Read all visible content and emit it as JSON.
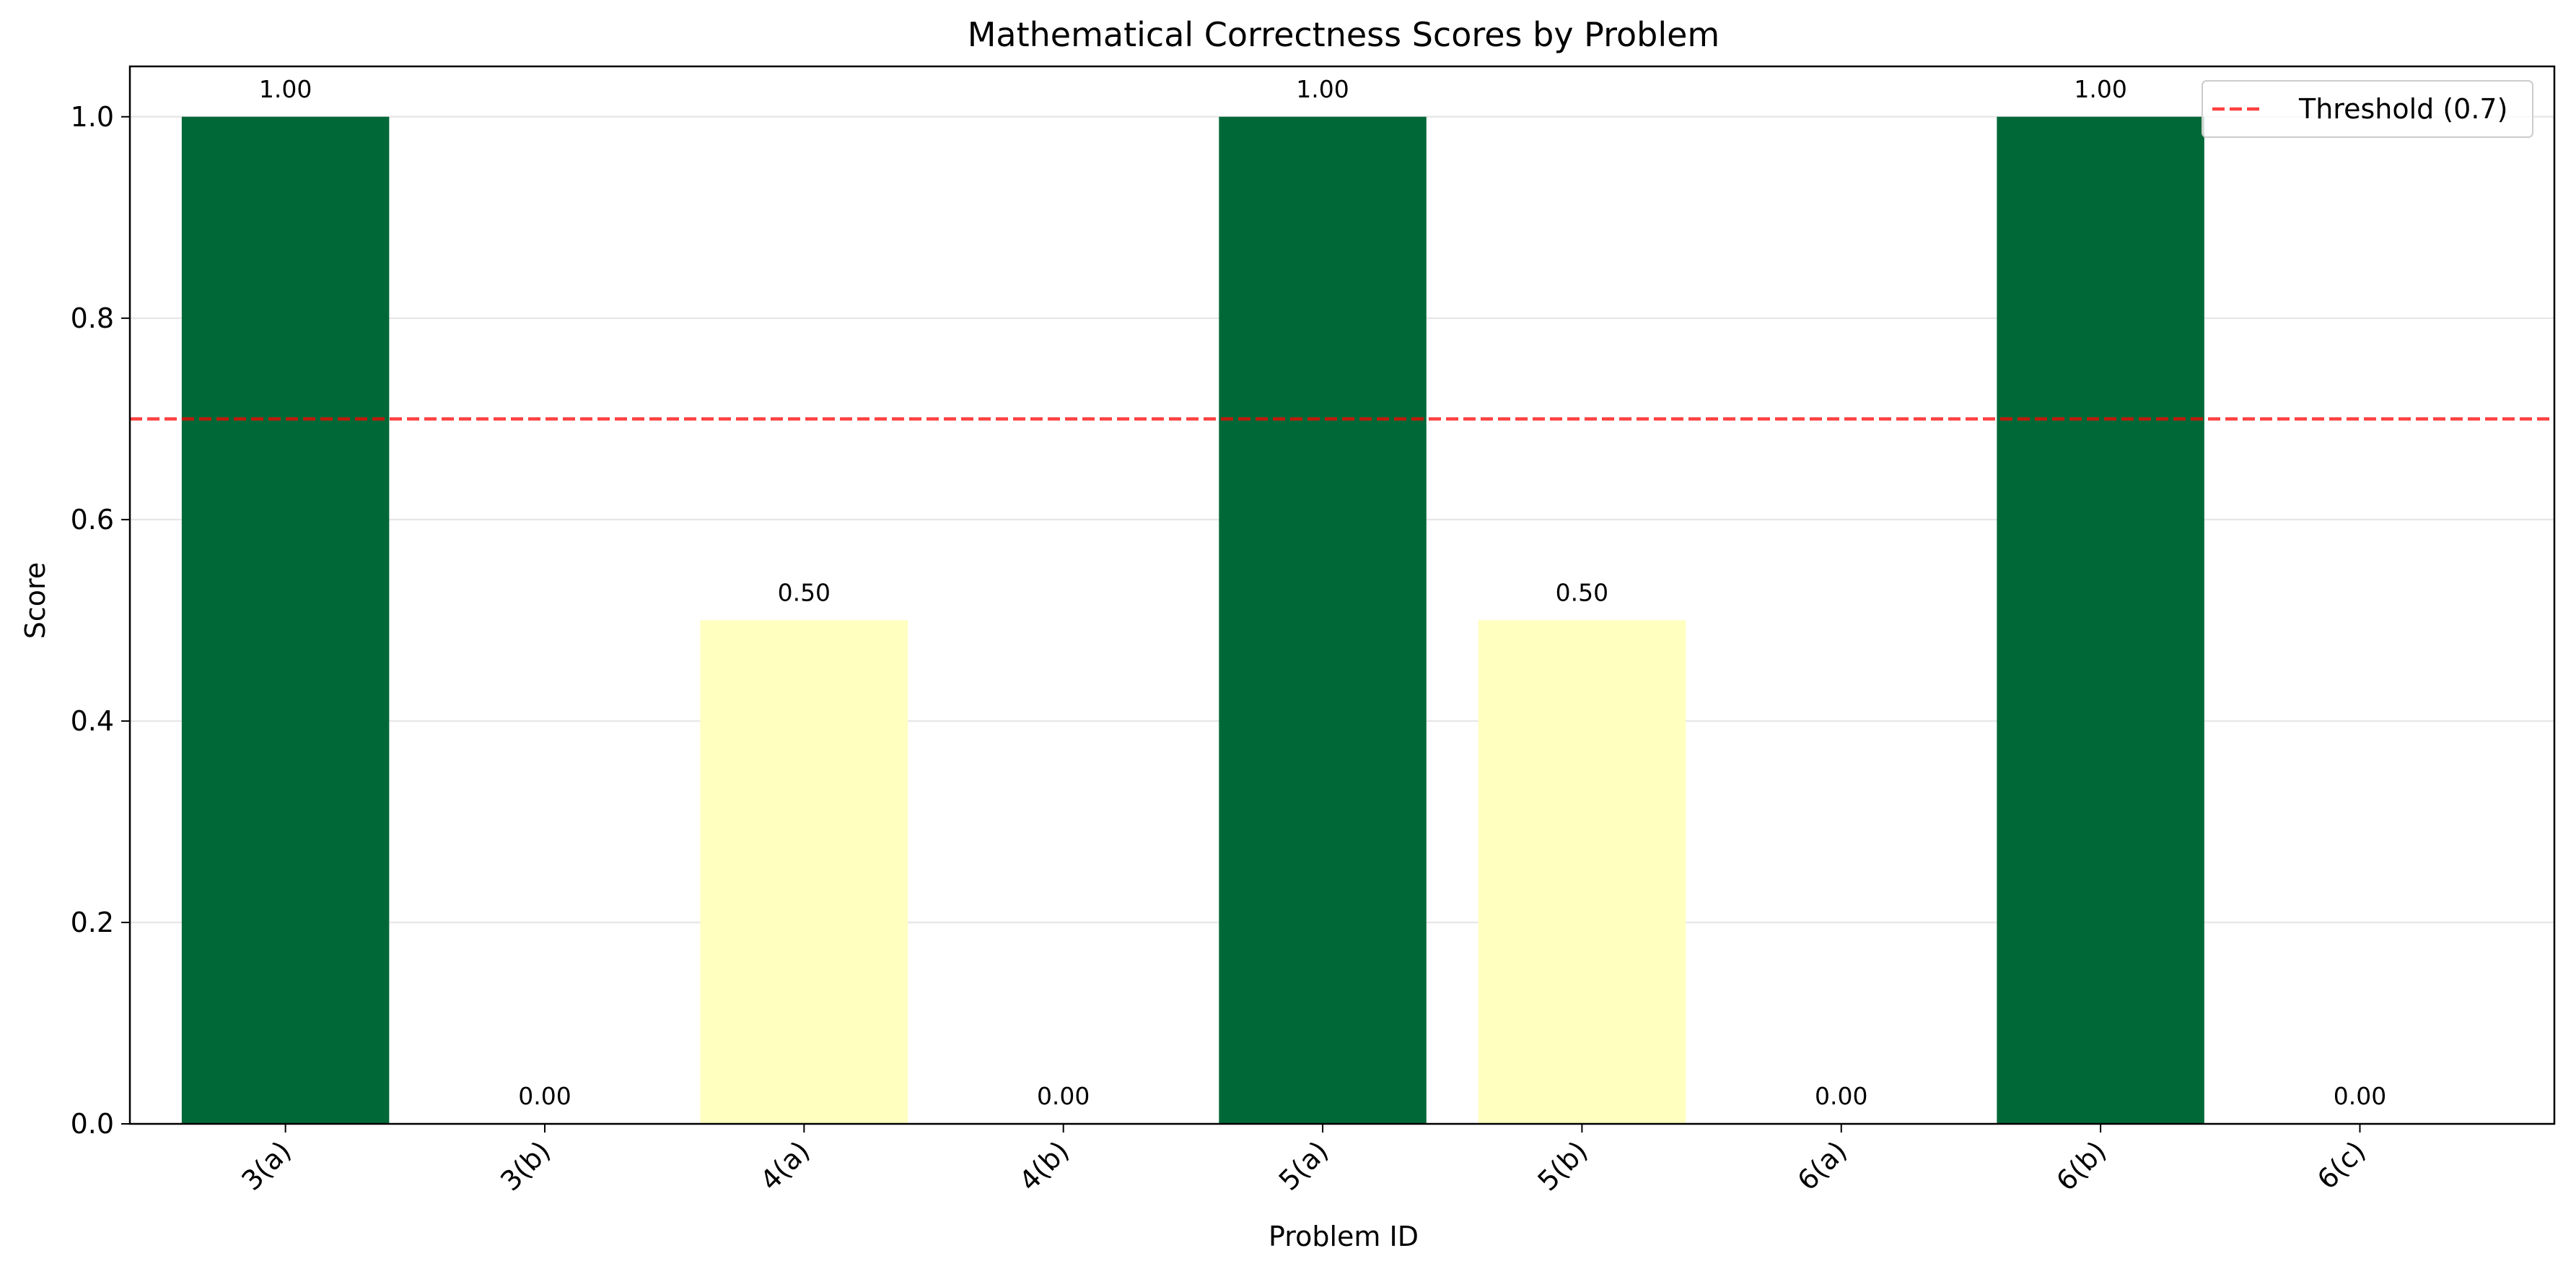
{
  "chart_data": {
    "type": "bar",
    "title": "Mathematical Correctness Scores by Problem",
    "xlabel": "Problem ID",
    "ylabel": "Score",
    "categories": [
      "3(a)",
      "3(b)",
      "4(a)",
      "4(b)",
      "5(a)",
      "5(b)",
      "6(a)",
      "6(b)",
      "6(c)"
    ],
    "values": [
      1.0,
      0.0,
      0.5,
      0.0,
      1.0,
      0.5,
      0.0,
      1.0,
      0.0
    ],
    "value_labels": [
      "1.00",
      "0.00",
      "0.50",
      "0.00",
      "1.00",
      "0.50",
      "0.00",
      "1.00",
      "0.00"
    ],
    "bar_colors": [
      "#006837",
      "#a50026",
      "#ffffbf",
      "#a50026",
      "#006837",
      "#ffffbf",
      "#a50026",
      "#006837",
      "#a50026"
    ],
    "ylim": [
      0,
      1.05
    ],
    "yticks": [
      0.0,
      0.2,
      0.4,
      0.6,
      0.8,
      1.0
    ],
    "ytick_labels": [
      "0.0",
      "0.2",
      "0.4",
      "0.6",
      "0.8",
      "1.0"
    ],
    "grid": "y",
    "threshold": {
      "value": 0.7,
      "label": "Threshold (0.7)",
      "color": "#ff0000",
      "style": "dashed"
    },
    "legend": {
      "position": "top-right"
    }
  }
}
